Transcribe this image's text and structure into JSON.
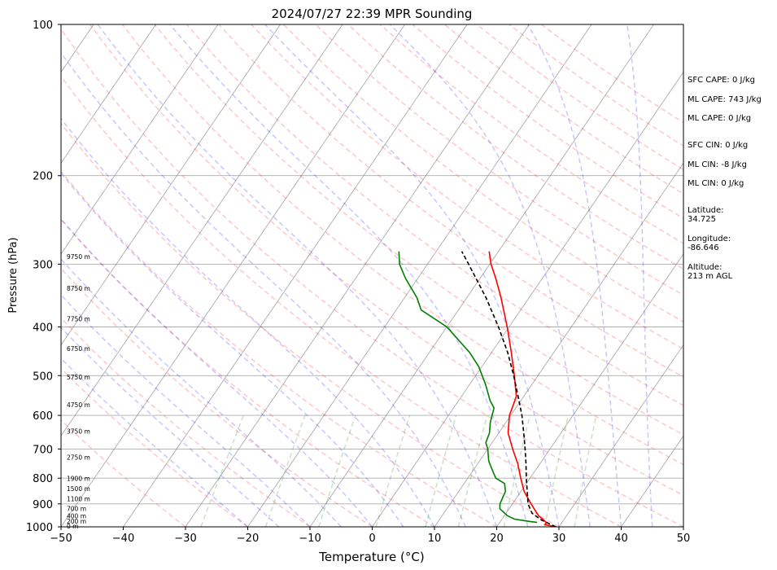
{
  "chart_data": {
    "type": "line",
    "subtype": "skew-t log-p sounding",
    "title": "2024/07/27 22:39 MPR Sounding",
    "xlabel": "Temperature (°C)",
    "ylabel": "Pressure (hPa)",
    "xlim": [
      -50,
      50
    ],
    "ylim": [
      1000,
      100
    ],
    "y_scale": "log",
    "x_ticks": [
      "−50",
      "−40",
      "−30",
      "−20",
      "−10",
      "0",
      "10",
      "20",
      "30",
      "40",
      "50"
    ],
    "y_ticks": [
      "100",
      "200",
      "300",
      "400",
      "500",
      "600",
      "700",
      "800",
      "900",
      "1000"
    ],
    "grid": true,
    "series": [
      {
        "label": "temperature",
        "color": "#ff0000",
        "points": [
          [
            1000,
            29.5
          ],
          [
            990,
            27.5
          ],
          [
            980,
            27.5
          ],
          [
            965,
            26.5
          ],
          [
            950,
            25.5
          ],
          [
            920,
            24
          ],
          [
            900,
            23
          ],
          [
            850,
            20.5
          ],
          [
            800,
            18.5
          ],
          [
            750,
            16.5
          ],
          [
            700,
            14
          ],
          [
            650,
            11.5
          ],
          [
            600,
            9.8
          ],
          [
            550,
            8.8
          ],
          [
            500,
            6.2
          ],
          [
            450,
            3.2
          ],
          [
            400,
            -0.3
          ],
          [
            350,
            -4.5
          ],
          [
            320,
            -7.5
          ],
          [
            300,
            -9.8
          ],
          [
            283,
            -11.5
          ]
        ]
      },
      {
        "label": "dewpoint",
        "color": "#008000",
        "points": [
          [
            980,
            26
          ],
          [
            975,
            24.5
          ],
          [
            965,
            22
          ],
          [
            950,
            20.5
          ],
          [
            920,
            18.5
          ],
          [
            900,
            18
          ],
          [
            850,
            17.5
          ],
          [
            820,
            16.5
          ],
          [
            800,
            14.5
          ],
          [
            780,
            13.5
          ],
          [
            740,
            11.5
          ],
          [
            700,
            10
          ],
          [
            680,
            9
          ],
          [
            650,
            8.5
          ],
          [
            620,
            7.5
          ],
          [
            600,
            7
          ],
          [
            580,
            6.5
          ],
          [
            560,
            5
          ],
          [
            520,
            2.5
          ],
          [
            480,
            -0.5
          ],
          [
            450,
            -3.5
          ],
          [
            400,
            -10
          ],
          [
            370,
            -16
          ],
          [
            350,
            -18
          ],
          [
            320,
            -22
          ],
          [
            300,
            -24.5
          ],
          [
            283,
            -26
          ]
        ]
      },
      {
        "label": "parcel",
        "color": "#000000",
        "points": [
          [
            1000,
            29.5
          ],
          [
            970,
            26.5
          ],
          [
            940,
            24.2
          ],
          [
            900,
            22.5
          ],
          [
            850,
            21
          ],
          [
            800,
            19.4
          ],
          [
            750,
            17.8
          ],
          [
            700,
            16
          ],
          [
            650,
            14
          ],
          [
            600,
            11.8
          ],
          [
            550,
            9.1
          ],
          [
            500,
            6.1
          ],
          [
            450,
            2.6
          ],
          [
            400,
            -1.7
          ],
          [
            350,
            -6.9
          ],
          [
            300,
            -13.4
          ],
          [
            283,
            -15.9
          ]
        ]
      }
    ],
    "height_labels": [
      {
        "text": "0 m",
        "p": 1000
      },
      {
        "text": "200 m",
        "p": 977
      },
      {
        "text": "400 m",
        "p": 955
      },
      {
        "text": "700 m",
        "p": 923
      },
      {
        "text": "1100 m",
        "p": 882
      },
      {
        "text": "1500 m",
        "p": 842
      },
      {
        "text": "1900 m",
        "p": 804
      },
      {
        "text": "2750 m",
        "p": 729
      },
      {
        "text": "3750 m",
        "p": 648
      },
      {
        "text": "4750 m",
        "p": 573
      },
      {
        "text": "5750 m",
        "p": 505
      },
      {
        "text": "6750 m",
        "p": 443
      },
      {
        "text": "7750 m",
        "p": 387
      },
      {
        "text": "8750 m",
        "p": 336
      },
      {
        "text": "9750 m",
        "p": 291
      }
    ],
    "annotations": {
      "sfc_cape": "SFC CAPE: 0 J/kg",
      "ml_cape_1": "ML CAPE: 743 J/kg",
      "ml_cape_2": "ML CAPE: 0 J/kg",
      "sfc_cin": "SFC CIN: 0 J/kg",
      "ml_cin_1": "ML CIN: -8 J/kg",
      "ml_cin_2": "ML CIN: 0 J/kg",
      "latitude": "Latitude:\n34.725",
      "longitude": "Longitude:\n-86.646",
      "altitude": "Altitude:\n213 m AGL"
    },
    "background_lines": {
      "dry_adiabats_color": "#ff0000",
      "moist_adiabats_color": "#0000ff",
      "mixing_ratio_color": "#008000",
      "isotherm_color": "#808080"
    }
  }
}
